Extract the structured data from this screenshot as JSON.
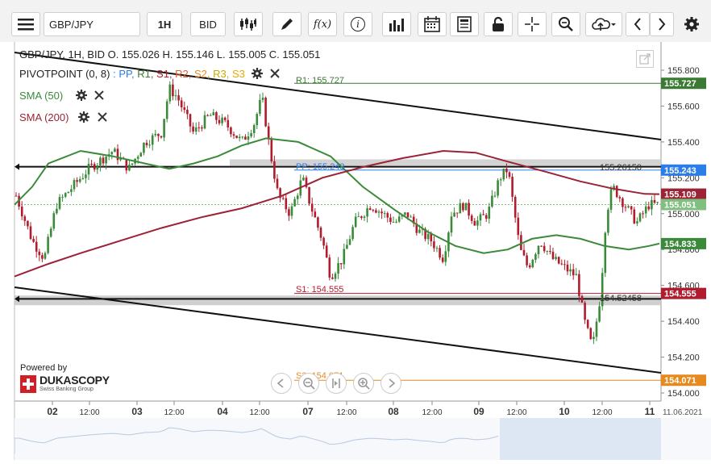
{
  "toolbar": {
    "symbol": "GBP/JPY",
    "timeframe": "1H",
    "price_type": "BID",
    "icons": [
      "menu-icon",
      "candles-icon",
      "draw-icon",
      "function-icon",
      "info-icon",
      "volume-icon",
      "calendar-icon",
      "report-icon",
      "lock-icon",
      "crosshair-icon",
      "zoom-icon",
      "cloud-upload-icon",
      "chevron-left-icon",
      "chevron-right-icon",
      "gear-icon"
    ],
    "fx_label": "f(x)",
    "info_label": "i"
  },
  "legend": {
    "ohlc": "GBP/JPY, 1H, BID   O. 155.026 H. 155.146 L. 155.005 C. 155.051",
    "pivot": "PIVOTPOINT (0, 8)",
    "pivot_series": [
      {
        "label": "PP,",
        "color": "#2b7de9"
      },
      {
        "label": "R1,",
        "color": "#3a7a32"
      },
      {
        "label": "S1,",
        "color": "#b01c2e"
      },
      {
        "label": "R2,",
        "color": "#e65c2e"
      },
      {
        "label": "S2,",
        "color": "#e68a1f"
      },
      {
        "label": "R3,",
        "color": "#c8a800"
      },
      {
        "label": "S3",
        "color": "#e6a800"
      }
    ],
    "sma50": "SMA (50)",
    "sma200": "SMA (200)",
    "sma50_color": "#3a8a3a",
    "sma200_color": "#9b2335"
  },
  "levels": {
    "r1": "R1: 155.727",
    "pp": "PP: 155.243",
    "s1": "S1: 154.555",
    "s2": "S2: 154.071",
    "hline_upper": "155.26150",
    "hline_lower": "154.52458"
  },
  "price_axis": {
    "ticks": [
      "155.800",
      "155.600",
      "155.400",
      "155.200",
      "155.000",
      "154.800",
      "154.600",
      "154.400",
      "154.200",
      "154.000"
    ],
    "badges": [
      {
        "label": "155.727",
        "color": "#3a7a32",
        "value": 155.727
      },
      {
        "label": "155.243",
        "color": "#2b7de9",
        "value": 155.243
      },
      {
        "label": "155.109",
        "color": "#9b2335",
        "value": 155.109
      },
      {
        "label": "155.051",
        "color": "#7fbf7f",
        "value": 155.051
      },
      {
        "label": "154.833",
        "color": "#3a8a3a",
        "value": 154.833
      },
      {
        "label": "154.555",
        "color": "#b01c2e",
        "value": 154.555
      },
      {
        "label": "154.071",
        "color": "#e68a1f",
        "value": 154.071
      }
    ]
  },
  "time_axis": {
    "labels": [
      "02",
      "12:00",
      "03",
      "12:00",
      "04",
      "12:00",
      "07",
      "12:00",
      "08",
      "12:00",
      "09",
      "12:00",
      "10",
      "12:00",
      "11"
    ],
    "date_label": "11.06.2021"
  },
  "branding": {
    "powered_by": "Powered by",
    "logo": "DUKASCOPY",
    "tagline": "Swiss Banking Group"
  },
  "navigator_icons": [
    "scroll-left-icon",
    "zoom-out-icon",
    "reset-icon",
    "zoom-in-icon",
    "scroll-right-icon"
  ],
  "colors": {
    "up": "#3a8a3a",
    "down": "#b01c2e",
    "gray_band": "#c8c8c8"
  }
}
